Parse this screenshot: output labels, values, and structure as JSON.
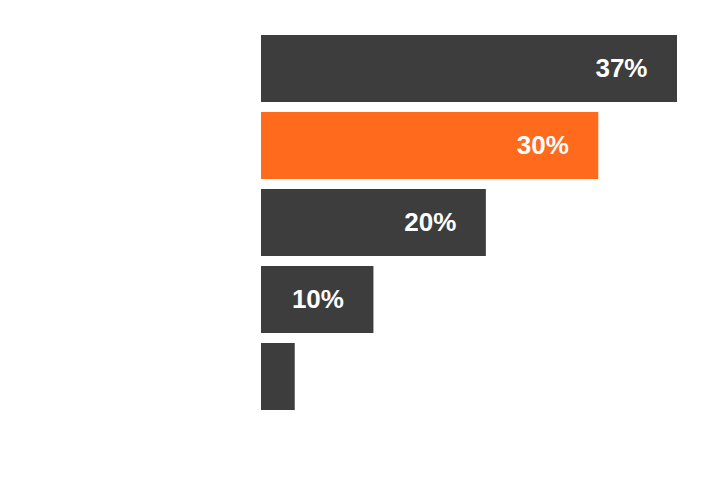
{
  "chart_data": {
    "type": "bar",
    "orientation": "horizontal",
    "categories": [
      null,
      null,
      null,
      null,
      null
    ],
    "values": [
      37,
      30,
      20,
      10,
      3
    ],
    "value_labels": [
      "37%",
      "30%",
      "20%",
      "10%",
      null
    ],
    "colors": [
      "#3d3d3d",
      "#ff6a1c",
      "#3d3d3d",
      "#3d3d3d",
      "#3d3d3d"
    ],
    "xlim": [
      0,
      37
    ],
    "data_labels": true,
    "grid": false,
    "tick_labels": false
  }
}
